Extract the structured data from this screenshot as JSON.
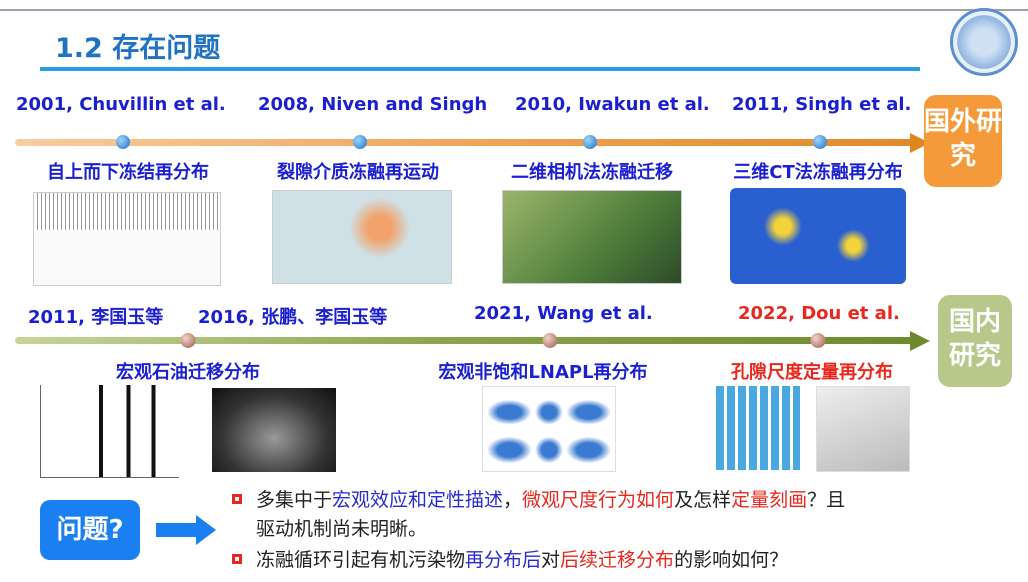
{
  "title": "1.2 存在问题",
  "foreign": {
    "badge": "国外研究",
    "events": [
      {
        "year": "2001, Chuvillin et al.",
        "topic": "自上而下冻结再分布"
      },
      {
        "year": "2008, Niven and Singh",
        "topic": "裂隙介质冻融再运动"
      },
      {
        "year": "2010, Iwakun et al.",
        "topic": "二维相机法冻融迁移"
      },
      {
        "year": "2011, Singh et al.",
        "topic": "三维CT法冻融再分布"
      }
    ]
  },
  "domestic": {
    "badge": "国内研究",
    "events": [
      {
        "year": "2011, 李国玉等"
      },
      {
        "year": "2016, 张鹏、李国玉等",
        "topic": "宏观石油迁移分布"
      },
      {
        "year": "2021, Wang et al.",
        "topic": "宏观非饱和LNAPL再分布"
      },
      {
        "year": "2022, Dou et al.",
        "topic": "孔隙尺度定量再分布"
      }
    ]
  },
  "problem": {
    "label": "问题?",
    "b1": [
      "多集中于",
      "宏观效应和定性描述",
      "，",
      "微观尺度行为如何",
      "及怎样",
      "定量刻画",
      "？且"
    ],
    "b1_line2": "驱动机制尚未明晰。",
    "b2": [
      "冻融循环引起有机污染物",
      "再分布后",
      "对",
      "后续迁移分布",
      "的影响如何？"
    ]
  },
  "colors": {
    "title": "#1f72c4",
    "year": "#1c1fd0",
    "highlight_red": "#e8281e",
    "foreign_badge": "#f59a3b",
    "domestic_badge": "#b7c88a",
    "problem_box": "#1a7ff0"
  }
}
